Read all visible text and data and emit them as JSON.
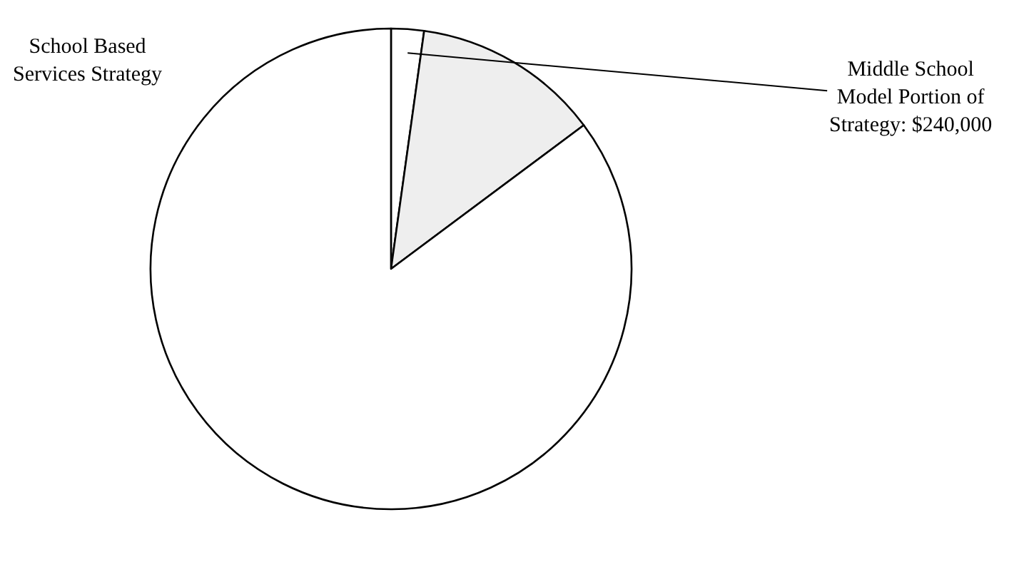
{
  "chart_data": {
    "type": "pie",
    "title": "School Based\nServices Strategy",
    "categories": [
      "Middle School\nModel Portion of\nStrategy: $240,000",
      null,
      null
    ],
    "values": [
      2.2,
      12.6,
      85.2
    ],
    "colors": [
      "#ffffff",
      "#eeeeee",
      "#ffffff"
    ],
    "legend": false
  }
}
